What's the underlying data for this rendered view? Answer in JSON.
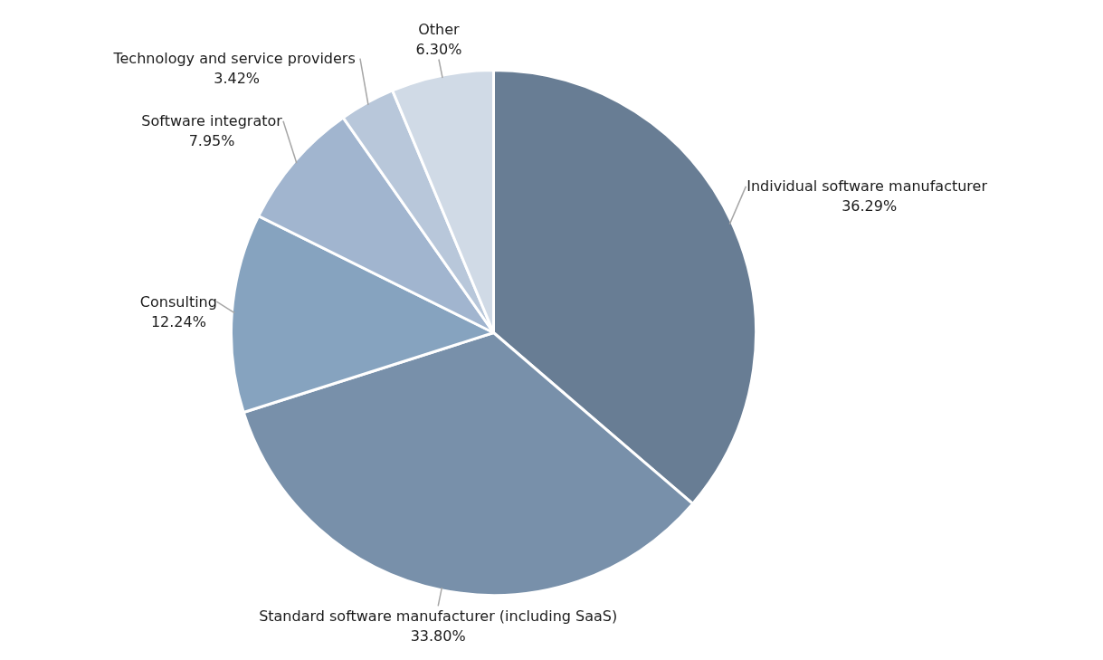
{
  "chart_data": {
    "type": "pie",
    "categories": [
      "Individual  software manufacturer",
      "Standard software manufacturer (including SaaS)",
      "Consulting",
      "Software integrator",
      "Technology  and service providers",
      "Other"
    ],
    "values": [
      36.29,
      33.8,
      12.24,
      7.95,
      3.42,
      6.3
    ],
    "value_labels": [
      "36.29%",
      "33.80%",
      "12.24%",
      "7.95%",
      "3.42%",
      "6.30%"
    ],
    "colors": [
      "#687d94",
      "#7890aa",
      "#86a3bf",
      "#a1b5cf",
      "#b8c7da",
      "#d0dae6"
    ],
    "legend": false
  }
}
